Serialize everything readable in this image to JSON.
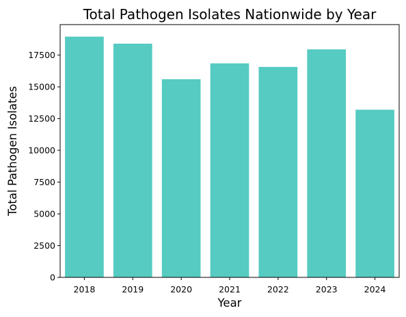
{
  "chart_data": {
    "type": "bar",
    "title": "Total Pathogen Isolates Nationwide by Year",
    "xlabel": "Year",
    "ylabel": "Total Pathogen Isolates",
    "categories": [
      "2018",
      "2019",
      "2020",
      "2021",
      "2022",
      "2023",
      "2024"
    ],
    "values": [
      18950,
      18400,
      15600,
      16850,
      16570,
      17950,
      13200
    ],
    "yticks": [
      0,
      2500,
      5000,
      7500,
      10000,
      12500,
      15000,
      17500
    ],
    "ylim": [
      0,
      19900
    ],
    "grid": false,
    "bar_color": "#55CBC1"
  }
}
